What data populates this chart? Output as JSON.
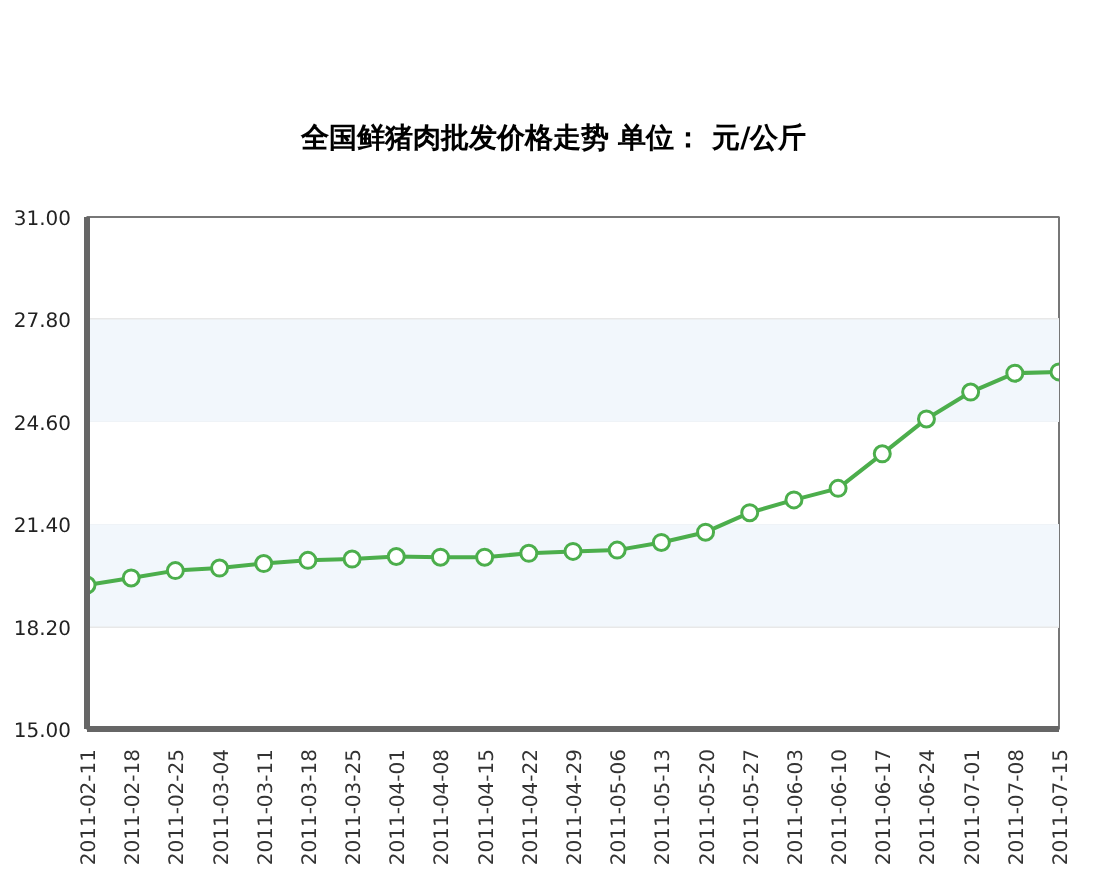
{
  "chart_data": {
    "type": "line",
    "title": "全国鲜猪肉批发价格走势    单位：  元/公斤",
    "categories": [
      "2011-02-11",
      "2011-02-18",
      "2011-02-25",
      "2011-03-04",
      "2011-03-11",
      "2011-03-18",
      "2011-03-25",
      "2011-04-01",
      "2011-04-08",
      "2011-04-15",
      "2011-04-22",
      "2011-04-29",
      "2011-05-06",
      "2011-05-13",
      "2011-05-20",
      "2011-05-27",
      "2011-06-03",
      "2011-06-10",
      "2011-06-17",
      "2011-06-24",
      "2011-07-01",
      "2011-07-08",
      "2011-07-15"
    ],
    "series": [
      {
        "color": "#4cae4c",
        "values": [
          19.5,
          19.72,
          19.95,
          20.03,
          20.17,
          20.27,
          20.31,
          20.39,
          20.37,
          20.37,
          20.49,
          20.55,
          20.59,
          20.83,
          21.15,
          21.76,
          22.16,
          22.52,
          23.6,
          24.69,
          25.53,
          26.12,
          26.16
        ]
      }
    ],
    "ylim": [
      15.0,
      31.0
    ],
    "yticks": [
      {
        "value": 15.0,
        "label": "15.00"
      },
      {
        "value": 18.2,
        "label": "18.20"
      },
      {
        "value": 21.4,
        "label": "21.40"
      },
      {
        "value": 24.6,
        "label": "24.60"
      },
      {
        "value": 27.8,
        "label": "27.80"
      },
      {
        "value": 31.0,
        "label": "31.00"
      }
    ],
    "bands": [
      {
        "axis": "y",
        "from": 18.2,
        "to": 21.4,
        "color": "#f2f7fc"
      },
      {
        "axis": "y",
        "from": 24.6,
        "to": 27.8,
        "color": "#f2f7fc"
      }
    ],
    "grid": "y",
    "marker": "circle"
  }
}
